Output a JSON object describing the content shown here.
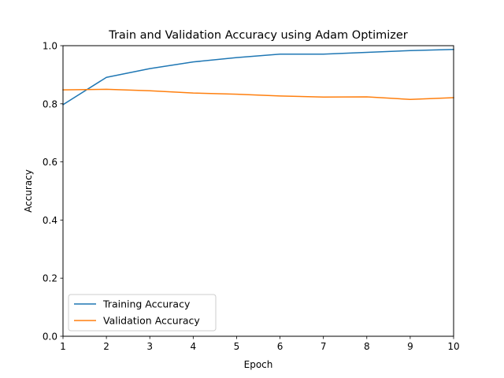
{
  "chart_data": {
    "type": "line",
    "title": "Train and Validation Accuracy using Adam Optimizer",
    "xlabel": "Epoch",
    "ylabel": "Accuracy",
    "x": [
      1,
      2,
      3,
      4,
      5,
      6,
      7,
      8,
      9,
      10
    ],
    "xlim": [
      1,
      10
    ],
    "ylim": [
      0.0,
      1.0
    ],
    "xticks": [
      "1",
      "2",
      "3",
      "4",
      "5",
      "6",
      "7",
      "8",
      "9",
      "10"
    ],
    "yticks": [
      "0.0",
      "0.2",
      "0.4",
      "0.6",
      "0.8",
      "1.0"
    ],
    "grid": false,
    "legend_position": "lower-left",
    "series": [
      {
        "name": "Training Accuracy",
        "color": "#1f77b4",
        "values": [
          0.797,
          0.891,
          0.921,
          0.944,
          0.959,
          0.971,
          0.971,
          0.977,
          0.983,
          0.987
        ]
      },
      {
        "name": "Validation Accuracy",
        "color": "#ff7f0e",
        "values": [
          0.848,
          0.85,
          0.845,
          0.837,
          0.833,
          0.827,
          0.823,
          0.824,
          0.815,
          0.821
        ]
      }
    ]
  }
}
